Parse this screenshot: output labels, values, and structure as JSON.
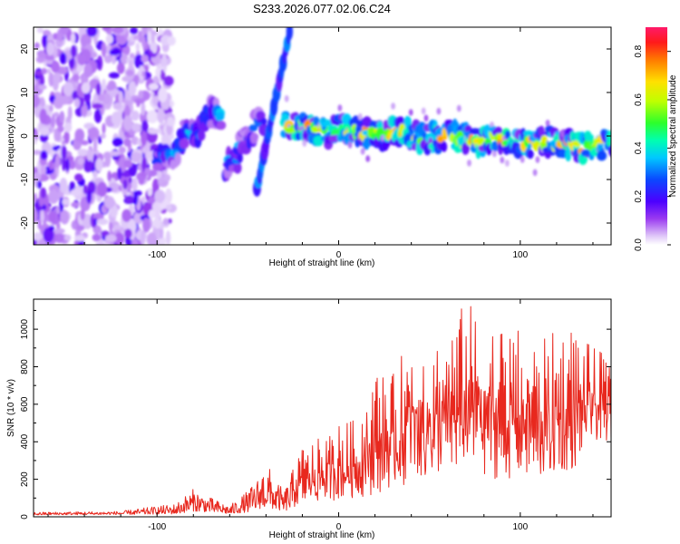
{
  "title": "S233.2026.077.02.06.C24",
  "chart_data": [
    {
      "type": "heatmap",
      "title": "S233.2026.077.02.06.C24",
      "xlabel": "Height of straight line (km)",
      "ylabel": "Frequency (Hz)",
      "xlim": [
        -168,
        150
      ],
      "ylim": [
        -25,
        25
      ],
      "xticks": [
        -100,
        0,
        100
      ],
      "xtick_labels": [
        "-100",
        "0",
        "100"
      ],
      "yticks": [
        -20,
        -10,
        0,
        10,
        20
      ],
      "ytick_labels": [
        "-20",
        "-10",
        "0",
        "10",
        "20"
      ],
      "colorbar": {
        "label": "Normalized spectral amplitude",
        "range": [
          0,
          0.9
        ],
        "ticks": [
          0.0,
          0.2,
          0.4,
          0.6,
          0.8
        ],
        "tick_labels": [
          "0.0",
          "0.2",
          "0.4",
          "0.6",
          "0.8"
        ],
        "colormap": "rainbow"
      },
      "features": [
        {
          "name": "noise-region",
          "x": [
            -168,
            -100
          ],
          "y": [
            -25,
            25
          ],
          "amplitude": 0.1
        },
        {
          "name": "rising-branch-1",
          "x": [
            -100,
            -65
          ],
          "y_start": -6,
          "y_end": 6,
          "amplitude": 0.35
        },
        {
          "name": "rising-branch-2",
          "x": [
            -62,
            -42
          ],
          "y_start": -8,
          "y_end": 4,
          "amplitude": 0.3
        },
        {
          "name": "steep-branch",
          "x": [
            -45,
            -27
          ],
          "y_start": -12,
          "y_end": 24,
          "amplitude": 0.25
        },
        {
          "name": "main-band",
          "x": [
            -30,
            150
          ],
          "y_start": 2,
          "y_end": -2.5,
          "amplitude": 0.7
        }
      ]
    },
    {
      "type": "line",
      "xlabel": "Height of straight line (km)",
      "ylabel": "SNR (10 * v/v)",
      "xlim": [
        -168,
        150
      ],
      "ylim": [
        0,
        1160
      ],
      "xticks": [
        -100,
        0,
        100
      ],
      "xtick_labels": [
        "-100",
        "0",
        "100"
      ],
      "yticks": [
        0,
        200,
        400,
        600,
        800,
        1000
      ],
      "ytick_labels": [
        "0",
        "200",
        "400",
        "600",
        "800",
        "1000"
      ],
      "series": [
        {
          "name": "SNR",
          "color": "#e8281e",
          "envelope_x": [
            -168,
            -120,
            -90,
            -80,
            -70,
            -60,
            -50,
            -45,
            -40,
            -35,
            -30,
            -20,
            -10,
            0,
            10,
            20,
            30,
            40,
            50,
            60,
            70,
            80,
            90,
            100,
            110,
            120,
            130,
            140,
            150
          ],
          "envelope_max": [
            25,
            30,
            70,
            150,
            100,
            60,
            140,
            200,
            300,
            200,
            140,
            380,
            420,
            500,
            520,
            800,
            760,
            1000,
            950,
            1000,
            1160,
            1070,
            1040,
            1000,
            930,
            1000,
            1030,
            900,
            860
          ],
          "envelope_min": [
            10,
            12,
            15,
            30,
            25,
            15,
            25,
            40,
            50,
            40,
            30,
            60,
            80,
            90,
            100,
            120,
            150,
            180,
            200,
            200,
            250,
            200,
            200,
            200,
            180,
            200,
            250,
            400,
            400
          ]
        }
      ]
    }
  ]
}
